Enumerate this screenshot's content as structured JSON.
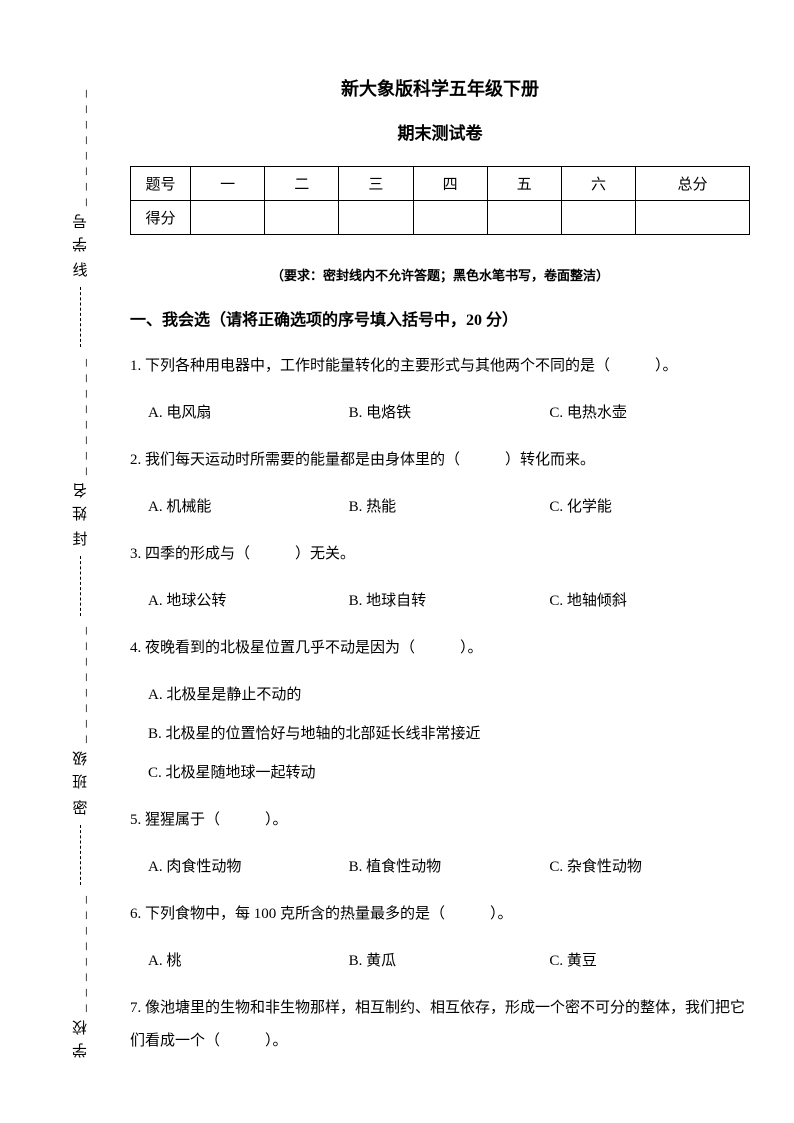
{
  "header": {
    "title": "新大象版科学五年级下册",
    "subtitle": "期末测试卷"
  },
  "sidebar": {
    "labels": [
      "学号",
      "姓名",
      "班级",
      "学校"
    ],
    "seal_chars": [
      "线",
      "封",
      "密"
    ]
  },
  "score_table": {
    "row1_label": "题号",
    "cols": [
      "一",
      "二",
      "三",
      "四",
      "五",
      "六",
      "总分"
    ],
    "row2_label": "得分"
  },
  "note": "（要求：密封线内不允许答题；黑色水笔书写，卷面整洁）",
  "section1": {
    "heading": "一、我会选（请将正确选项的序号填入括号中，20 分）",
    "q1": {
      "text": "1. 下列各种用电器中，工作时能量转化的主要形式与其他两个不同的是（　　　）。",
      "a": "A. 电风扇",
      "b": "B. 电烙铁",
      "c": "C. 电热水壶"
    },
    "q2": {
      "text": "2. 我们每天运动时所需要的能量都是由身体里的（　　　）转化而来。",
      "a": "A. 机械能",
      "b": "B. 热能",
      "c": "C. 化学能"
    },
    "q3": {
      "text": "3. 四季的形成与（　　　）无关。",
      "a": "A. 地球公转",
      "b": "B. 地球自转",
      "c": "C. 地轴倾斜"
    },
    "q4": {
      "text": "4. 夜晚看到的北极星位置几乎不动是因为（　　　）。",
      "a": "A. 北极星是静止不动的",
      "b": "B. 北极星的位置恰好与地轴的北部延长线非常接近",
      "c": "C. 北极星随地球一起转动"
    },
    "q5": {
      "text": "5. 猩猩属于（　　　）。",
      "a": "A. 肉食性动物",
      "b": "B. 植食性动物",
      "c": "C. 杂食性动物"
    },
    "q6": {
      "text": "6. 下列食物中，每 100 克所含的热量最多的是（　　　）。",
      "a": "A. 桃",
      "b": "B. 黄瓜",
      "c": "C. 黄豆"
    },
    "q7": {
      "text": "7. 像池塘里的生物和非生物那样，相互制约、相互依存，形成一个密不可分的整体，我们把它们看成一个（　　　）。"
    }
  }
}
